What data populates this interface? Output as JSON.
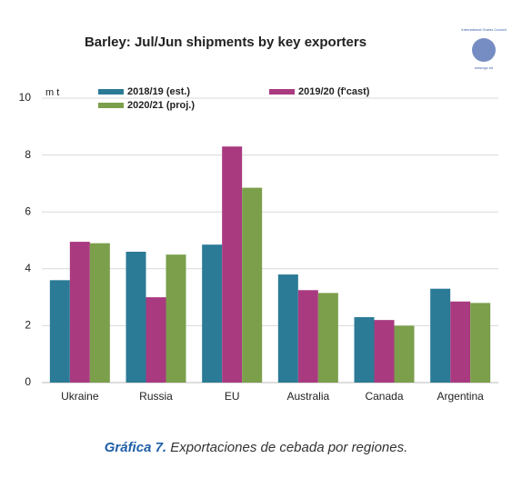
{
  "chart_data": {
    "type": "bar",
    "title": "Barley: Jul/Jun shipments by key exporters",
    "y_axis_label": "m t",
    "categories": [
      "Ukraine",
      "Russia",
      "EU",
      "Australia",
      "Canada",
      "Argentina"
    ],
    "series": [
      {
        "name": "2018/19 (est.)",
        "color": "#2b7b96",
        "values": [
          3.6,
          4.6,
          4.85,
          3.8,
          2.3,
          3.3
        ]
      },
      {
        "name": "2019/20 (f'cast)",
        "color": "#a93a80",
        "values": [
          4.95,
          3.0,
          8.3,
          3.25,
          2.2,
          2.85
        ]
      },
      {
        "name": "2020/21 (proj.)",
        "color": "#7b9f4b",
        "values": [
          4.9,
          4.5,
          6.85,
          3.15,
          2.0,
          2.8
        ]
      }
    ],
    "ylim": [
      0,
      10
    ],
    "yticks": [
      0,
      2,
      4,
      6,
      8,
      10
    ],
    "grid": true,
    "logo": {
      "name": "International Grains Council",
      "url": "www.igc.int"
    }
  },
  "caption": {
    "label": "Gráfica 7.",
    "text": "Exportaciones de cebada por regiones."
  }
}
